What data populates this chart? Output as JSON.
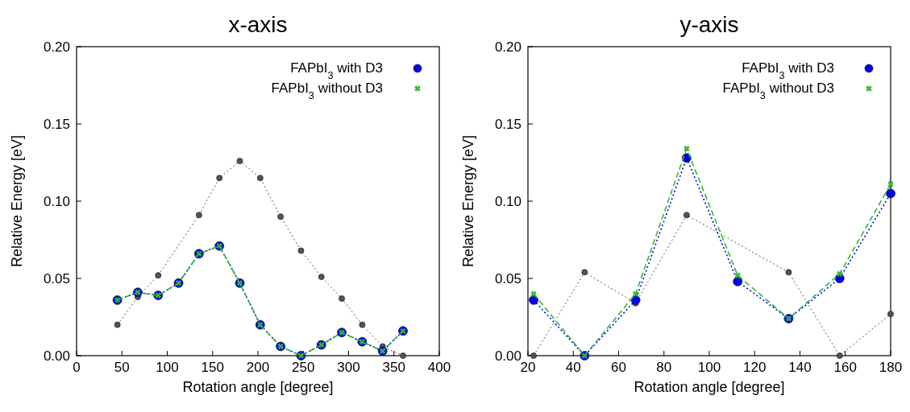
{
  "chart_data": [
    {
      "type": "line",
      "title": "x-axis",
      "xlabel": "Rotation angle [degree]",
      "ylabel": "Relative Energy [eV]",
      "xlim": [
        0,
        400
      ],
      "xticks": [
        0,
        50,
        100,
        150,
        200,
        250,
        300,
        350,
        400
      ],
      "ylim": [
        0,
        0.2
      ],
      "yticks": [
        {
          "value": 0,
          "label": "0.00"
        },
        {
          "value": 0.05,
          "label": "0.05"
        },
        {
          "value": 0.1,
          "label": "0.10"
        },
        {
          "value": 0.15,
          "label": "0.15"
        },
        {
          "value": 0.2,
          "label": "0.20"
        }
      ],
      "legend": "top right",
      "series": [
        {
          "color": "#555555",
          "marker": "circle",
          "line_style": "dotted",
          "x": [
            45,
            67.5,
            90,
            135,
            157.5,
            180,
            202.5,
            225,
            247.5,
            270,
            292.5,
            315,
            337.5,
            360
          ],
          "values": [
            0.02,
            0.038,
            0.052,
            0.091,
            0.115,
            0.126,
            0.115,
            0.09,
            0.068,
            0.051,
            0.037,
            0.02,
            0.006,
            0.0
          ]
        },
        {
          "name": "FAPbI$_{3}$ with D3",
          "color": "#0000ee",
          "marker": "circle",
          "line_style": "dotted",
          "x": [
            45,
            67.5,
            90,
            112.5,
            135,
            157.5,
            180,
            202.5,
            225,
            247.5,
            270,
            292.5,
            315,
            337.5,
            360
          ],
          "values": [
            0.036,
            0.041,
            0.039,
            0.047,
            0.066,
            0.071,
            0.047,
            0.02,
            0.006,
            0.0,
            0.007,
            0.015,
            0.009,
            0.003,
            0.016
          ]
        },
        {
          "name": "FAPbI$_{3}$ without D3",
          "color": "#2eb82e",
          "marker": "cross",
          "line_style": "dashed",
          "x": [
            45,
            67.5,
            90,
            112.5,
            135,
            157.5,
            180,
            202.5,
            225,
            247.5,
            270,
            292.5,
            315,
            337.5,
            360
          ],
          "values": [
            0.036,
            0.041,
            0.039,
            0.047,
            0.066,
            0.071,
            0.047,
            0.02,
            0.006,
            0.0,
            0.007,
            0.015,
            0.009,
            0.003,
            0.016
          ]
        }
      ]
    },
    {
      "type": "line",
      "title": "y-axis",
      "xlabel": "Rotation angle [degree]",
      "ylabel": "Relative Energy [eV]",
      "xlim": [
        20,
        180
      ],
      "xticks": [
        20,
        40,
        60,
        80,
        100,
        120,
        140,
        160,
        180
      ],
      "ylim": [
        0,
        0.2
      ],
      "yticks": [
        {
          "value": 0,
          "label": "0.00"
        },
        {
          "value": 0.05,
          "label": "0.05"
        },
        {
          "value": 0.1,
          "label": "0.10"
        },
        {
          "value": 0.15,
          "label": "0.15"
        },
        {
          "value": 0.2,
          "label": "0.20"
        }
      ],
      "legend": "top right",
      "series": [
        {
          "color": "#555555",
          "marker": "circle",
          "line_style": "dotted",
          "x": [
            22.5,
            45,
            67.5,
            90,
            135,
            157.5,
            180
          ],
          "values": [
            0.0,
            0.054,
            0.034,
            0.091,
            0.054,
            0.0,
            0.027
          ]
        },
        {
          "name": "FAPbI$_{3}$ with D3",
          "color": "#0000ee",
          "marker": "circle",
          "line_style": "dotted",
          "x": [
            22.5,
            45,
            67.5,
            90,
            112.5,
            135,
            157.5,
            180
          ],
          "values": [
            0.036,
            0.0,
            0.036,
            0.128,
            0.048,
            0.024,
            0.05,
            0.105
          ]
        },
        {
          "name": "FAPbI$_{3}$ without D3",
          "color": "#2eb82e",
          "marker": "cross",
          "line_style": "dashed",
          "x": [
            22.5,
            45,
            67.5,
            90,
            112.5,
            135,
            157.5,
            180
          ],
          "values": [
            0.04,
            0.0,
            0.04,
            0.134,
            0.052,
            0.024,
            0.053,
            0.111
          ]
        }
      ]
    }
  ]
}
